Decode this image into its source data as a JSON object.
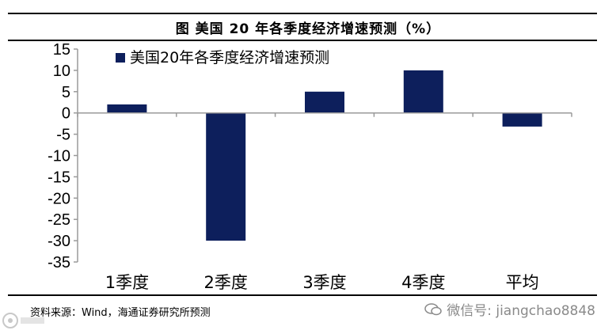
{
  "figure_title": "图  美国 20 年各季度经济增速预测（%）",
  "source_note": "资料来源：Wind，海通证券研究所预测",
  "watermark": {
    "text": "微信号: jiangchao8848",
    "icon": "wechat-icon"
  },
  "colors": {
    "bar": "#0d1f5c",
    "axis": "#9a9a9a",
    "rule": "#000000"
  },
  "chart_data": {
    "type": "bar",
    "categories": [
      "1季度",
      "2季度",
      "3季度",
      "4季度",
      "平均"
    ],
    "series": [
      {
        "name": "美国20年各季度经济增速预测",
        "values": [
          2,
          -30,
          5,
          10,
          -3.2
        ]
      }
    ],
    "ylim": [
      -35,
      15
    ],
    "yticks": [
      15,
      10,
      5,
      0,
      -5,
      -10,
      -15,
      -20,
      -25,
      -30,
      -35
    ],
    "legend_position": "top-left",
    "grid": false,
    "title": "",
    "xlabel": "",
    "ylabel": ""
  }
}
